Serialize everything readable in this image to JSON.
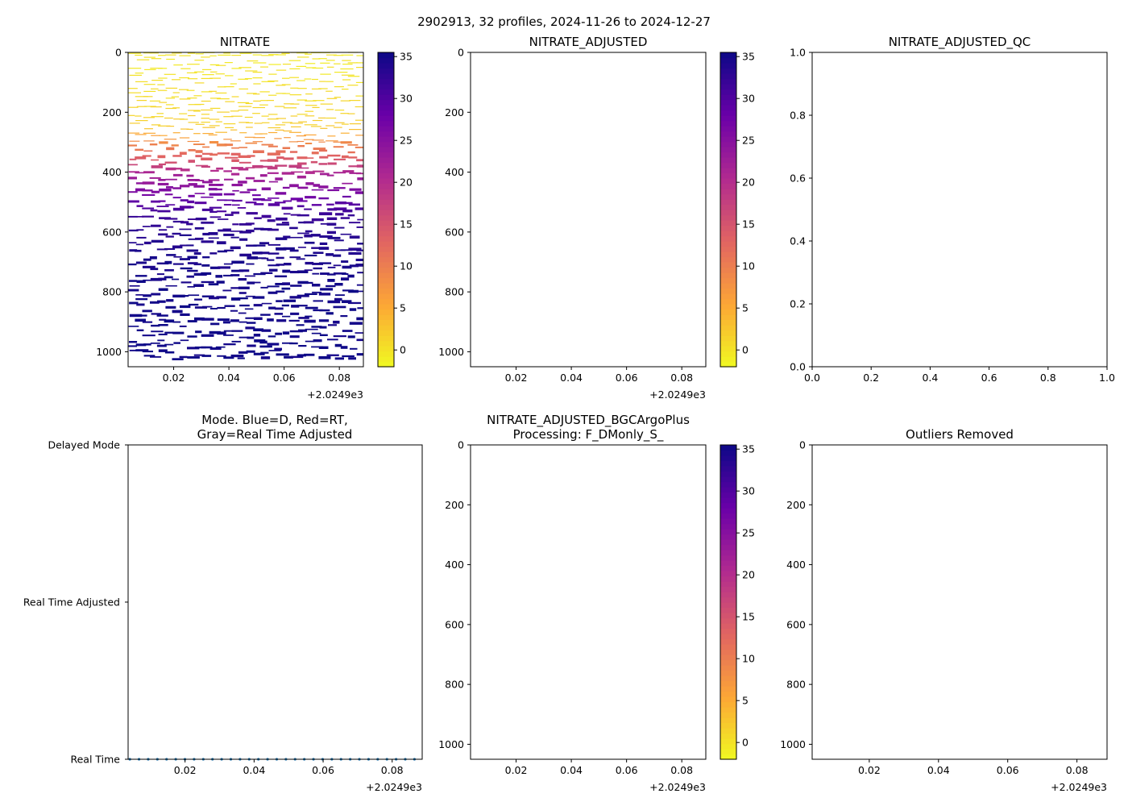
{
  "figure_title": "2902913, 32 profiles, 2024-11-26 to 2024-12-27",
  "colorscale": {
    "name": "plasma_r",
    "stops": [
      "#f0f921",
      "#fca636",
      "#e16462",
      "#b12a90",
      "#6a00a8",
      "#0d0887"
    ],
    "vmin": -2,
    "vmax": 35.5,
    "ticks": [
      0,
      5,
      10,
      15,
      20,
      25,
      30,
      35
    ]
  },
  "chart_data": [
    {
      "id": "nitrate",
      "type": "heatmap",
      "title": "NITRATE",
      "xlim": [
        2024.9035,
        2024.9887
      ],
      "xticks": [
        2024.92,
        2024.94,
        2024.96,
        2024.98
      ],
      "xtick_labels": [
        "0.02",
        "0.04",
        "0.06",
        "0.08"
      ],
      "x_offset_label": "+2.0249e3",
      "ylim": [
        1050,
        0
      ],
      "yticks": [
        0,
        200,
        400,
        600,
        800,
        1000
      ],
      "ytick_labels": [
        "0",
        "200",
        "400",
        "600",
        "800",
        "1000"
      ],
      "profiles_x_start": 2024.904,
      "profiles_x_step": 0.00266,
      "profile_count": 32,
      "profile": {
        "depth": [
          0,
          50,
          100,
          150,
          200,
          250,
          300,
          320,
          340,
          360,
          380,
          400,
          450,
          500,
          550,
          600,
          700,
          800,
          900,
          1000
        ],
        "nitrate": [
          -0.5,
          -0.2,
          0.2,
          0.6,
          1.2,
          2.0,
          8.5,
          10.5,
          12.5,
          14.5,
          17.5,
          21.0,
          25.0,
          29.0,
          32.0,
          33.5,
          34.5,
          35.0,
          35.2,
          35.3
        ]
      },
      "colorbar": true
    },
    {
      "id": "nitrate_adjusted",
      "type": "heatmap",
      "title": "NITRATE_ADJUSTED",
      "xlim": [
        2024.9035,
        2024.9887
      ],
      "xticks": [
        2024.92,
        2024.94,
        2024.96,
        2024.98
      ],
      "xtick_labels": [
        "0.02",
        "0.04",
        "0.06",
        "0.08"
      ],
      "x_offset_label": "+2.0249e3",
      "ylim": [
        1050,
        0
      ],
      "yticks": [
        0,
        200,
        400,
        600,
        800,
        1000
      ],
      "ytick_labels": [
        "0",
        "200",
        "400",
        "600",
        "800",
        "1000"
      ],
      "values": [],
      "colorbar": true
    },
    {
      "id": "nitrate_adjusted_qc",
      "type": "scatter",
      "title": "NITRATE_ADJUSTED_QC",
      "xlim": [
        0,
        1
      ],
      "xticks": [
        0,
        0.2,
        0.4,
        0.6,
        0.8,
        1.0
      ],
      "xtick_labels": [
        "0.0",
        "0.2",
        "0.4",
        "0.6",
        "0.8",
        "1.0"
      ],
      "ylim": [
        0,
        1
      ],
      "yticks": [
        0,
        0.2,
        0.4,
        0.6,
        0.8,
        1.0
      ],
      "ytick_labels": [
        "0.0",
        "0.2",
        "0.4",
        "0.6",
        "0.8",
        "1.0"
      ],
      "values": []
    },
    {
      "id": "mode",
      "type": "scatter",
      "title_lines": [
        "Mode. Blue=D, Red=RT,",
        "Gray=Real Time Adjusted"
      ],
      "xlim": [
        2024.9035,
        2024.9887
      ],
      "xticks": [
        2024.92,
        2024.94,
        2024.96,
        2024.98
      ],
      "xtick_labels": [
        "0.02",
        "0.04",
        "0.06",
        "0.08"
      ],
      "x_offset_label": "+2.0249e3",
      "categories": [
        "Real Time",
        "Real Time Adjusted",
        "Delayed Mode"
      ],
      "category_values": [
        0,
        1,
        2
      ],
      "ylim": [
        0,
        2
      ],
      "marker_color": "#1f77b4",
      "points": {
        "x_start": 2024.904,
        "x_step": 0.00266,
        "count": 32,
        "y": 0
      }
    },
    {
      "id": "nitrate_adjusted_bgcargoplus",
      "type": "heatmap",
      "title_lines": [
        "NITRATE_ADJUSTED_BGCArgoPlus",
        "Processing: F_DMonly_S_"
      ],
      "xlim": [
        2024.9035,
        2024.9887
      ],
      "xticks": [
        2024.92,
        2024.94,
        2024.96,
        2024.98
      ],
      "xtick_labels": [
        "0.02",
        "0.04",
        "0.06",
        "0.08"
      ],
      "x_offset_label": "+2.0249e3",
      "ylim": [
        1050,
        0
      ],
      "yticks": [
        0,
        200,
        400,
        600,
        800,
        1000
      ],
      "ytick_labels": [
        "0",
        "200",
        "400",
        "600",
        "800",
        "1000"
      ],
      "values": [],
      "colorbar": true
    },
    {
      "id": "outliers_removed",
      "type": "scatter",
      "title": "Outliers Removed",
      "xlim": [
        2024.9035,
        2024.9887
      ],
      "xticks": [
        2024.92,
        2024.94,
        2024.96,
        2024.98
      ],
      "xtick_labels": [
        "0.02",
        "0.04",
        "0.06",
        "0.08"
      ],
      "x_offset_label": "+2.0249e3",
      "ylim": [
        1050,
        0
      ],
      "yticks": [
        0,
        200,
        400,
        600,
        800,
        1000
      ],
      "ytick_labels": [
        "0",
        "200",
        "400",
        "600",
        "800",
        "1000"
      ],
      "values": []
    }
  ]
}
